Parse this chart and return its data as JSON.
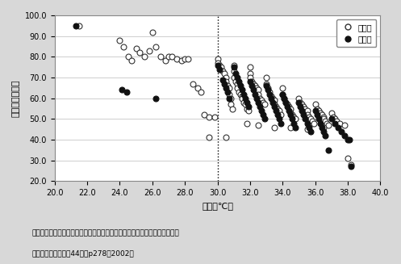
{
  "title": "",
  "xlabel": "気温（℃）",
  "ylabel": "相対湿度（％）",
  "xlim": [
    20.0,
    40.0
  ],
  "ylim": [
    20.0,
    100.0
  ],
  "xticks": [
    20.0,
    22.0,
    24.0,
    26.0,
    28.0,
    30.0,
    32.0,
    34.0,
    36.0,
    38.0,
    40.0
  ],
  "yticks": [
    20.0,
    30.0,
    40.0,
    50.0,
    60.0,
    70.0,
    80.0,
    90.0,
    100.0
  ],
  "vline_x": 30.0,
  "legend_labels": [
    "休業群",
    "死亡群"
  ],
  "caption_line1": "（沢田晋一、福田秀樹：夏季屋外作業による熱中症発生時の屋外気象条件、",
  "caption_line2": "産業衛生学雑誌、第44巻、p278、2002）",
  "open_circles": [
    [
      21.5,
      95.0
    ],
    [
      24.0,
      88.0
    ],
    [
      24.2,
      85.0
    ],
    [
      24.5,
      80.0
    ],
    [
      24.7,
      78.0
    ],
    [
      25.0,
      84.0
    ],
    [
      25.2,
      82.0
    ],
    [
      25.5,
      80.0
    ],
    [
      25.8,
      83.0
    ],
    [
      26.0,
      92.0
    ],
    [
      26.2,
      85.0
    ],
    [
      26.5,
      80.0
    ],
    [
      26.8,
      78.0
    ],
    [
      27.0,
      80.0
    ],
    [
      27.2,
      80.0
    ],
    [
      27.5,
      79.0
    ],
    [
      27.8,
      78.0
    ],
    [
      28.0,
      79.0
    ],
    [
      28.2,
      79.0
    ],
    [
      28.5,
      67.0
    ],
    [
      28.8,
      65.0
    ],
    [
      29.0,
      63.0
    ],
    [
      29.2,
      52.0
    ],
    [
      29.5,
      51.0
    ],
    [
      29.8,
      51.0
    ],
    [
      30.0,
      79.0
    ],
    [
      30.0,
      77.0
    ],
    [
      30.1,
      76.0
    ],
    [
      30.2,
      75.0
    ],
    [
      30.3,
      73.0
    ],
    [
      30.4,
      72.0
    ],
    [
      30.5,
      70.0
    ],
    [
      30.5,
      68.0
    ],
    [
      30.6,
      66.0
    ],
    [
      30.7,
      65.0
    ],
    [
      30.7,
      62.0
    ],
    [
      30.8,
      60.0
    ],
    [
      30.8,
      57.0
    ],
    [
      30.9,
      55.0
    ],
    [
      31.0,
      76.0
    ],
    [
      31.0,
      73.0
    ],
    [
      31.0,
      70.0
    ],
    [
      31.1,
      68.0
    ],
    [
      31.2,
      67.0
    ],
    [
      31.2,
      65.0
    ],
    [
      31.3,
      63.0
    ],
    [
      31.4,
      62.0
    ],
    [
      31.5,
      61.0
    ],
    [
      31.5,
      60.0
    ],
    [
      31.6,
      58.0
    ],
    [
      31.7,
      57.0
    ],
    [
      31.8,
      55.0
    ],
    [
      31.9,
      54.0
    ],
    [
      32.0,
      75.0
    ],
    [
      32.0,
      72.0
    ],
    [
      32.0,
      70.0
    ],
    [
      32.1,
      68.0
    ],
    [
      32.2,
      67.0
    ],
    [
      32.3,
      66.0
    ],
    [
      32.4,
      65.0
    ],
    [
      32.5,
      64.0
    ],
    [
      32.5,
      62.0
    ],
    [
      32.6,
      60.0
    ],
    [
      32.7,
      59.0
    ],
    [
      32.8,
      58.0
    ],
    [
      32.9,
      57.0
    ],
    [
      33.0,
      70.0
    ],
    [
      33.0,
      67.0
    ],
    [
      33.1,
      65.0
    ],
    [
      33.2,
      63.0
    ],
    [
      33.3,
      61.0
    ],
    [
      33.4,
      60.0
    ],
    [
      33.5,
      59.0
    ],
    [
      33.5,
      57.0
    ],
    [
      33.6,
      56.0
    ],
    [
      33.7,
      55.0
    ],
    [
      33.8,
      54.0
    ],
    [
      33.9,
      52.0
    ],
    [
      34.0,
      65.0
    ],
    [
      34.0,
      62.0
    ],
    [
      34.1,
      60.0
    ],
    [
      34.2,
      58.0
    ],
    [
      34.3,
      57.0
    ],
    [
      34.4,
      56.0
    ],
    [
      34.5,
      55.0
    ],
    [
      34.5,
      53.0
    ],
    [
      34.6,
      52.0
    ],
    [
      34.7,
      51.0
    ],
    [
      34.8,
      50.0
    ],
    [
      35.0,
      60.0
    ],
    [
      35.1,
      58.0
    ],
    [
      35.2,
      57.0
    ],
    [
      35.3,
      56.0
    ],
    [
      35.4,
      55.0
    ],
    [
      35.5,
      54.0
    ],
    [
      35.5,
      52.0
    ],
    [
      35.6,
      51.0
    ],
    [
      35.7,
      50.0
    ],
    [
      35.8,
      49.0
    ],
    [
      35.9,
      48.0
    ],
    [
      36.0,
      57.0
    ],
    [
      36.1,
      55.0
    ],
    [
      36.2,
      54.0
    ],
    [
      36.3,
      53.0
    ],
    [
      36.4,
      52.0
    ],
    [
      36.5,
      51.0
    ],
    [
      36.5,
      50.0
    ],
    [
      36.6,
      49.0
    ],
    [
      36.7,
      48.0
    ],
    [
      36.8,
      47.0
    ],
    [
      37.0,
      53.0
    ],
    [
      37.1,
      51.0
    ],
    [
      37.2,
      50.0
    ],
    [
      37.3,
      49.0
    ],
    [
      37.5,
      48.0
    ],
    [
      37.8,
      47.0
    ],
    [
      38.0,
      31.0
    ],
    [
      38.2,
      28.0
    ],
    [
      29.5,
      41.0
    ],
    [
      30.5,
      41.0
    ],
    [
      31.8,
      48.0
    ],
    [
      32.5,
      47.0
    ],
    [
      33.5,
      46.0
    ],
    [
      34.5,
      46.0
    ],
    [
      35.5,
      45.0
    ],
    [
      36.5,
      46.0
    ]
  ],
  "filled_circles": [
    [
      21.3,
      95.0
    ],
    [
      24.1,
      64.0
    ],
    [
      24.4,
      63.0
    ],
    [
      26.2,
      60.0
    ],
    [
      30.0,
      76.0
    ],
    [
      30.1,
      74.0
    ],
    [
      30.3,
      69.0
    ],
    [
      30.4,
      67.0
    ],
    [
      30.5,
      65.0
    ],
    [
      30.6,
      63.0
    ],
    [
      30.7,
      60.0
    ],
    [
      31.0,
      75.0
    ],
    [
      31.1,
      72.0
    ],
    [
      31.2,
      70.0
    ],
    [
      31.3,
      68.0
    ],
    [
      31.4,
      66.0
    ],
    [
      31.5,
      64.0
    ],
    [
      31.6,
      62.0
    ],
    [
      31.7,
      60.0
    ],
    [
      31.8,
      58.0
    ],
    [
      31.9,
      56.0
    ],
    [
      32.0,
      68.0
    ],
    [
      32.1,
      66.0
    ],
    [
      32.2,
      64.0
    ],
    [
      32.3,
      62.0
    ],
    [
      32.4,
      60.0
    ],
    [
      32.5,
      58.0
    ],
    [
      32.6,
      56.0
    ],
    [
      32.7,
      54.0
    ],
    [
      32.8,
      52.0
    ],
    [
      32.9,
      50.0
    ],
    [
      33.0,
      66.0
    ],
    [
      33.1,
      64.0
    ],
    [
      33.2,
      62.0
    ],
    [
      33.3,
      60.0
    ],
    [
      33.4,
      58.0
    ],
    [
      33.5,
      56.0
    ],
    [
      33.6,
      54.0
    ],
    [
      33.7,
      52.0
    ],
    [
      33.8,
      50.0
    ],
    [
      33.9,
      48.0
    ],
    [
      34.0,
      62.0
    ],
    [
      34.1,
      60.0
    ],
    [
      34.2,
      58.0
    ],
    [
      34.3,
      56.0
    ],
    [
      34.4,
      54.0
    ],
    [
      34.5,
      52.0
    ],
    [
      34.6,
      50.0
    ],
    [
      34.7,
      48.0
    ],
    [
      34.8,
      46.0
    ],
    [
      35.0,
      58.0
    ],
    [
      35.1,
      56.0
    ],
    [
      35.2,
      54.0
    ],
    [
      35.3,
      52.0
    ],
    [
      35.4,
      50.0
    ],
    [
      35.5,
      48.0
    ],
    [
      35.6,
      46.0
    ],
    [
      35.7,
      44.0
    ],
    [
      36.0,
      54.0
    ],
    [
      36.1,
      52.0
    ],
    [
      36.2,
      50.0
    ],
    [
      36.3,
      48.0
    ],
    [
      36.4,
      46.0
    ],
    [
      36.5,
      44.0
    ],
    [
      36.6,
      42.0
    ],
    [
      36.8,
      35.0
    ],
    [
      37.0,
      50.0
    ],
    [
      37.2,
      48.0
    ],
    [
      37.4,
      46.0
    ],
    [
      37.6,
      44.0
    ],
    [
      37.8,
      42.0
    ],
    [
      38.0,
      40.0
    ],
    [
      38.1,
      40.0
    ],
    [
      38.2,
      27.0
    ]
  ],
  "bg_color": "#d8d8d8",
  "plot_bg_color": "#ffffff",
  "open_color": "#333333",
  "filled_color": "#111111",
  "marker_size": 5,
  "border_color": "#888888"
}
